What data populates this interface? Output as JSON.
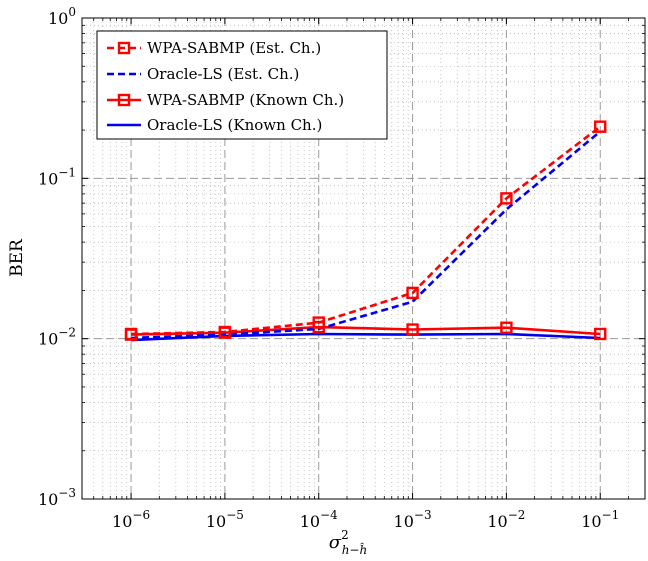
{
  "chart_data": {
    "type": "line",
    "x_scale": "log",
    "y_scale": "log",
    "x": [
      1e-06,
      1e-05,
      0.0001,
      0.001,
      0.01,
      0.1
    ],
    "xlim": [
      3e-07,
      0.3
    ],
    "ylim": [
      0.001,
      1
    ],
    "xlabel_main": "σ",
    "xlabel_sup": "2",
    "xlabel_sub": "h−ĥ",
    "ylabel": "BER",
    "x_ticks": [
      {
        "base": "10",
        "exp": "−6"
      },
      {
        "base": "10",
        "exp": "−5"
      },
      {
        "base": "10",
        "exp": "−4"
      },
      {
        "base": "10",
        "exp": "−3"
      },
      {
        "base": "10",
        "exp": "−2"
      },
      {
        "base": "10",
        "exp": "−1"
      }
    ],
    "y_ticks": [
      {
        "base": "10",
        "exp": "−3"
      },
      {
        "base": "10",
        "exp": "−2"
      },
      {
        "base": "10",
        "exp": "−1"
      },
      {
        "base": "10",
        "exp": "0"
      }
    ],
    "grid": true,
    "legend_position": "top-left",
    "series": [
      {
        "name": "WPA-SABMP (Est. Ch.)",
        "color": "#ff0000",
        "dash": "dashed",
        "marker": "square",
        "values": [
          0.0107,
          0.011,
          0.0126,
          0.0193,
          0.075,
          0.21
        ]
      },
      {
        "name": "Oracle-LS (Est. Ch.)",
        "color": "#0000ee",
        "dash": "dashed",
        "marker": "none",
        "values": [
          0.0101,
          0.0106,
          0.0115,
          0.017,
          0.064,
          0.196
        ]
      },
      {
        "name": "WPA-SABMP (Known Ch.)",
        "color": "#ff0000",
        "dash": "solid",
        "marker": "square",
        "values": [
          0.0106,
          0.0109,
          0.0118,
          0.0114,
          0.0117,
          0.0107
        ]
      },
      {
        "name": "Oracle-LS (Known Ch.)",
        "color": "#0000ee",
        "dash": "solid",
        "marker": "none",
        "values": [
          0.0098,
          0.0104,
          0.0107,
          0.0106,
          0.0107,
          0.0101
        ]
      }
    ]
  }
}
